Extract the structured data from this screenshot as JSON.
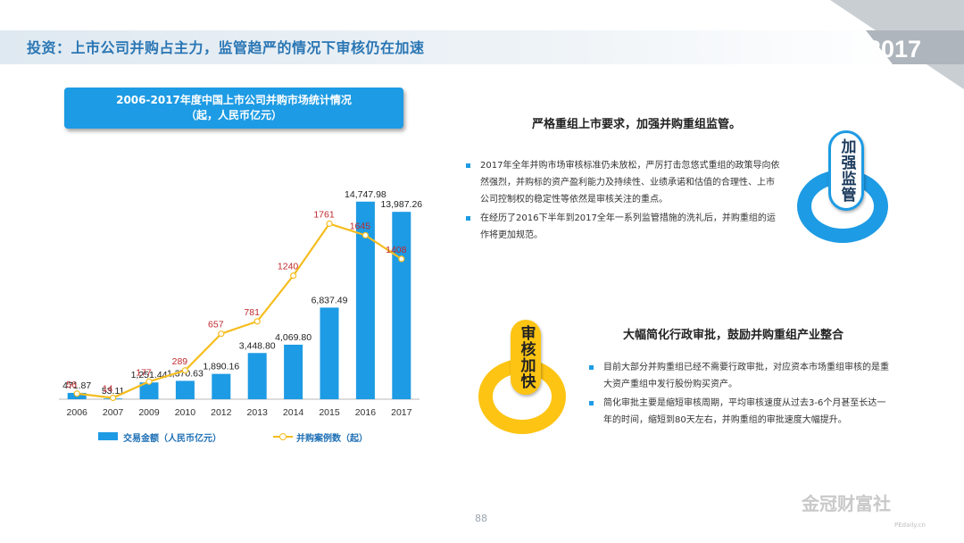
{
  "header": {
    "title": "投资：上市公司并购占主力，监管趋严的情况下审核仍在加速",
    "year": "2017"
  },
  "chart_box": {
    "line1": "2006-2017年度中国上市公司并购市场统计情况",
    "line2": "（起，人民币亿元）"
  },
  "chart_data": {
    "type": "bar",
    "categories": [
      "2006",
      "2007",
      "2009",
      "2010",
      "2012",
      "2013",
      "2014",
      "2015",
      "2016",
      "2017"
    ],
    "series": [
      {
        "name": "交易金额（人民币亿元）",
        "type": "bar",
        "values": [
          471.87,
          53.11,
          1251.44,
          1370.63,
          1890.16,
          3448.8,
          4069.8,
          6837.49,
          14747.98,
          13987.26
        ],
        "labels": [
          "471.87",
          "53.11",
          "1,251.44",
          "1,370.63",
          "1,890.16",
          "3,448.80",
          "4,069.80",
          "6,837.49",
          "14,747.98",
          "13,987.26"
        ],
        "color": "#1d9be4"
      },
      {
        "name": "并购案例数（起）",
        "type": "line",
        "values": [
          56,
          14,
          177,
          289,
          657,
          781,
          1240,
          1761,
          1645,
          1408
        ],
        "labels": [
          "56",
          "14",
          "177",
          "289",
          "657",
          "781",
          "1240",
          "1761",
          "1645",
          "1408"
        ],
        "color": "#f5bd1f",
        "label_color": "#c0282d"
      }
    ],
    "legend": "bottom"
  },
  "section1": {
    "heading": "严格重组上市要求，加强并购重组监管。",
    "bullets": [
      "2017年全年并购市场审核标准仍未放松，严厉打击忽悠式重组的政策导向依然强烈，并购标的资产盈利能力及持续性、业绩承诺和估值的合理性、上市公司控制权的稳定性等依然是审核关注的重点。",
      "在经历了2016下半年到2017全年一系列监管措施的洗礼后，并购重组的运作将更加规范。"
    ],
    "tag": "加强监管",
    "accent": "#1d9be4"
  },
  "section2": {
    "heading": "大幅简化行政审批，鼓励并购重组产业整合",
    "bullets": [
      "目前大部分并购重组已经不需要行政审批，对应资本市场重组审核的是重大资产重组中发行股份购买资产。",
      "简化审批主要是缩短审核周期，平均审核速度从过去3-6个月甚至长达一年的时间，缩短到80天左右，并购重组的审批速度大幅提升。"
    ],
    "tag": "审核加快",
    "accent": "#fdc414"
  },
  "footer": {
    "page": "88",
    "watermark": "金冠财富社",
    "watermark_sub": "PEdaily.cn"
  }
}
